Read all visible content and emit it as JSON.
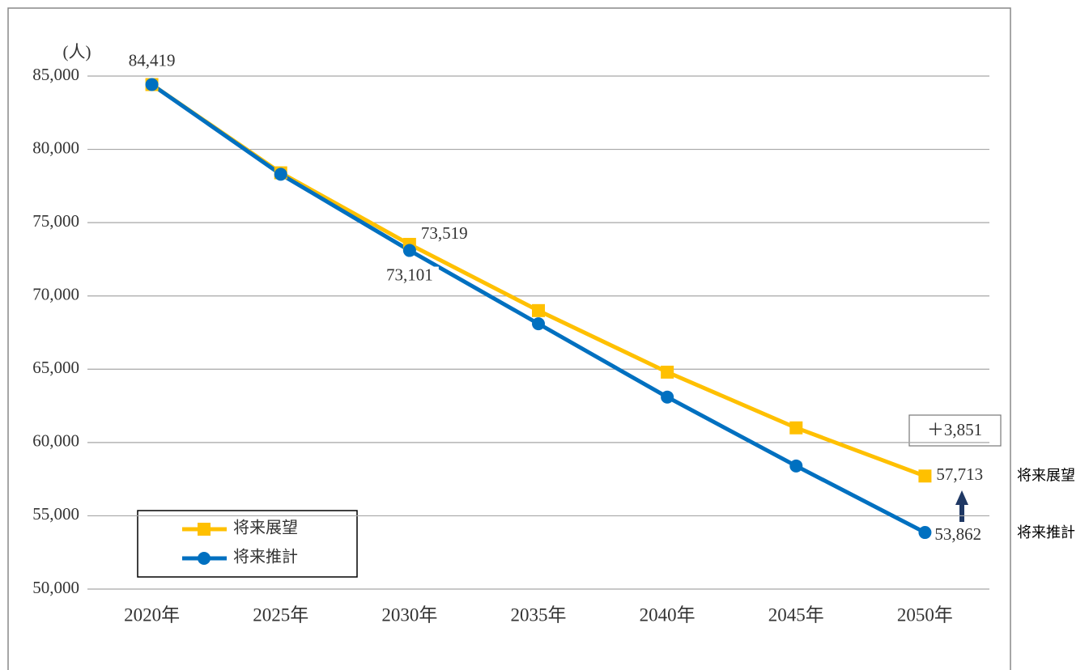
{
  "chart_data": {
    "type": "line",
    "y_axis_label": "(人)",
    "categories": [
      "2020年",
      "2025年",
      "2030年",
      "2035年",
      "2040年",
      "2045年",
      "2050年"
    ],
    "series": [
      {
        "name": "将来展望",
        "color": "#FFC000",
        "marker": "square",
        "values": [
          84419,
          78400,
          73519,
          69000,
          64800,
          61000,
          57713
        ],
        "value_labels": [
          "84,419",
          null,
          "73,519",
          null,
          null,
          null,
          "57,713"
        ]
      },
      {
        "name": "将来推計",
        "color": "#0070C0",
        "marker": "circle",
        "values": [
          84419,
          78300,
          73101,
          68100,
          63100,
          58400,
          53862
        ],
        "value_labels": [
          null,
          null,
          "73,101",
          null,
          null,
          null,
          "53,862"
        ]
      }
    ],
    "annotation": "＋3,851",
    "ylim": [
      50000,
      85000
    ],
    "yticks": [
      {
        "value": 50000,
        "label": "50,000"
      },
      {
        "value": 55000,
        "label": "55,000"
      },
      {
        "value": 60000,
        "label": "60,000"
      },
      {
        "value": 65000,
        "label": "65,000"
      },
      {
        "value": 70000,
        "label": "70,000"
      },
      {
        "value": 75000,
        "label": "75,000"
      },
      {
        "value": 80000,
        "label": "80,000"
      },
      {
        "value": 85000,
        "label": "85,000"
      }
    ],
    "grid": true,
    "legend": "lower left"
  }
}
